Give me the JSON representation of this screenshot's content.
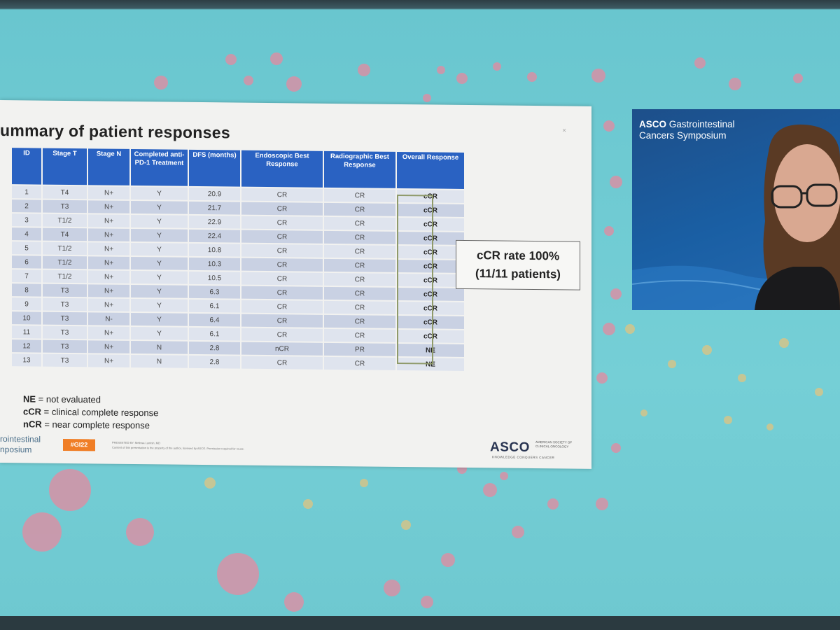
{
  "slide": {
    "title": "ummary of patient responses",
    "corner_mark": "×",
    "table": {
      "headers": [
        "ID",
        "Stage T",
        "Stage N",
        "Completed anti-PD-1 Treatment",
        "DFS (months)",
        "Endoscopic Best Response",
        "Radiographic Best Response",
        "Overall Response"
      ],
      "rows": [
        [
          "1",
          "T4",
          "N+",
          "Y",
          "20.9",
          "CR",
          "CR",
          "cCR"
        ],
        [
          "2",
          "T3",
          "N+",
          "Y",
          "21.7",
          "CR",
          "CR",
          "cCR"
        ],
        [
          "3",
          "T1/2",
          "N+",
          "Y",
          "22.9",
          "CR",
          "CR",
          "cCR"
        ],
        [
          "4",
          "T4",
          "N+",
          "Y",
          "22.4",
          "CR",
          "CR",
          "cCR"
        ],
        [
          "5",
          "T1/2",
          "N+",
          "Y",
          "10.8",
          "CR",
          "CR",
          "cCR"
        ],
        [
          "6",
          "T1/2",
          "N+",
          "Y",
          "10.3",
          "CR",
          "CR",
          "cCR"
        ],
        [
          "7",
          "T1/2",
          "N+",
          "Y",
          "10.5",
          "CR",
          "CR",
          "cCR"
        ],
        [
          "8",
          "T3",
          "N+",
          "Y",
          "6.3",
          "CR",
          "CR",
          "cCR"
        ],
        [
          "9",
          "T3",
          "N+",
          "Y",
          "6.1",
          "CR",
          "CR",
          "cCR"
        ],
        [
          "10",
          "T3",
          "N-",
          "Y",
          "6.4",
          "CR",
          "CR",
          "cCR"
        ],
        [
          "11",
          "T3",
          "N+",
          "Y",
          "6.1",
          "CR",
          "CR",
          "cCR"
        ],
        [
          "12",
          "T3",
          "N+",
          "N",
          "2.8",
          "nCR",
          "PR",
          "NE"
        ],
        [
          "13",
          "T3",
          "N+",
          "N",
          "2.8",
          "CR",
          "CR",
          "NE"
        ]
      ]
    },
    "rate_box": {
      "line1": "cCR rate 100%",
      "line2": "(11/11 patients)"
    },
    "legend": [
      {
        "abbr": "NE",
        "text": " = not evaluated"
      },
      {
        "abbr": "cCR",
        "text": " = clinical complete response"
      },
      {
        "abbr": "nCR",
        "text": " = near complete response"
      }
    ],
    "footer": {
      "left_line1": "rointestinal",
      "left_line2": "nposium",
      "hashtag": "#GI22",
      "fine_line1": "PRESENTED BY: Melissa Lumish, MD",
      "fine_line2": "Content of this presentation is the property of the author, licensed by ASCO. Permission required for reuse.",
      "logo": "ASCO",
      "tagline": "KNOWLEDGE CONQUERS CANCER",
      "side_text": "AMERICAN SOCIETY OF CLINICAL ONCOLOGY"
    }
  },
  "video": {
    "title_bold": "ASCO",
    "title_rest": " Gastrointestinal",
    "title_line2": "Cancers Symposium"
  },
  "colors": {
    "header_blue": "#2a62c2",
    "row_light": "#dfe4ee",
    "row_dark": "#c9d1e3",
    "hashtag_orange": "#f07e26",
    "background_teal": "#75cfd6"
  }
}
